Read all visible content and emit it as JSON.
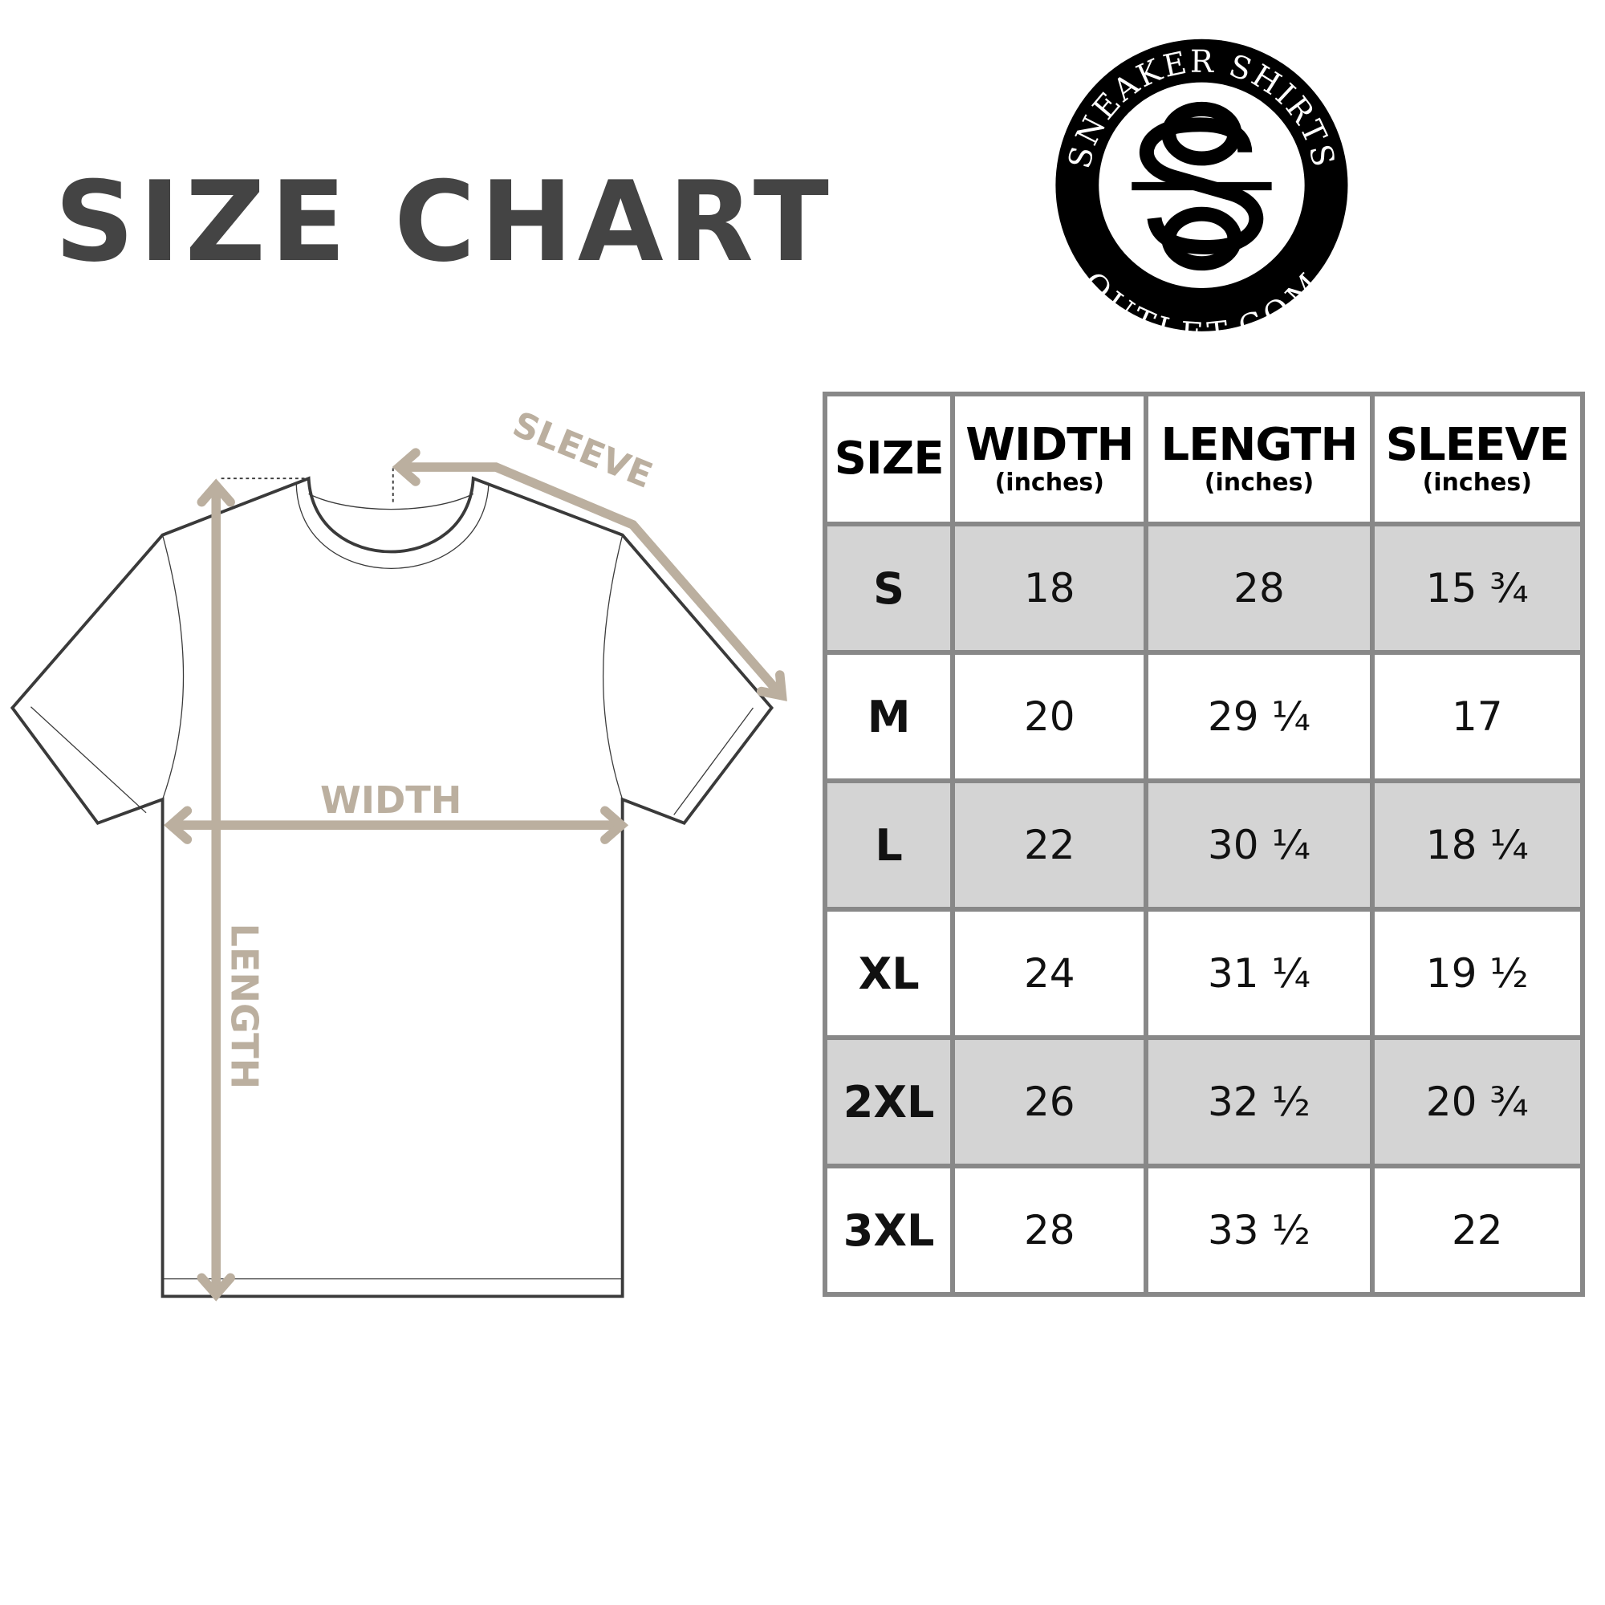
{
  "title": "SIZE CHART",
  "logo": {
    "top_text": "SNEAKER SHIRTS",
    "bottom_text": "OUTLET.COM",
    "monogram": "SO"
  },
  "diagram": {
    "labels": {
      "sleeve": "SLEEVE",
      "width": "WIDTH",
      "length": "LENGTH"
    },
    "arrow_color": "#bbaf9f",
    "outline_color": "#3a3a3a"
  },
  "table": {
    "headers": [
      {
        "main": "SIZE",
        "sub": ""
      },
      {
        "main": "WIDTH",
        "sub": "(inches)"
      },
      {
        "main": "LENGTH",
        "sub": "(inches)"
      },
      {
        "main": "SLEEVE",
        "sub": "(inches)"
      }
    ],
    "rows": [
      {
        "size": "S",
        "width": "18",
        "length": "28",
        "sleeve": "15 ¾"
      },
      {
        "size": "M",
        "width": "20",
        "length": "29 ¼",
        "sleeve": "17"
      },
      {
        "size": "L",
        "width": "22",
        "length": "30 ¼",
        "sleeve": "18 ¼"
      },
      {
        "size": "XL",
        "width": "24",
        "length": "31 ¼",
        "sleeve": "19 ½"
      },
      {
        "size": "2XL",
        "width": "26",
        "length": "32 ½",
        "sleeve": "20 ¾"
      },
      {
        "size": "3XL",
        "width": "28",
        "length": "33 ½",
        "sleeve": "22"
      }
    ],
    "shade_color": "#d4d4d4",
    "border_color": "#888888"
  }
}
